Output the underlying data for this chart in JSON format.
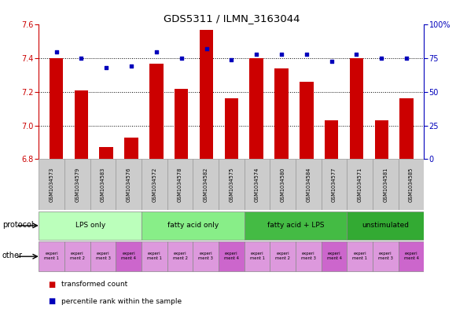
{
  "title": "GDS5311 / ILMN_3163044",
  "samples": [
    "GSM1034573",
    "GSM1034579",
    "GSM1034583",
    "GSM1034576",
    "GSM1034572",
    "GSM1034578",
    "GSM1034582",
    "GSM1034575",
    "GSM1034574",
    "GSM1034580",
    "GSM1034584",
    "GSM1034577",
    "GSM1034571",
    "GSM1034581",
    "GSM1034585"
  ],
  "transformed_count": [
    7.4,
    7.21,
    6.87,
    6.93,
    7.37,
    7.22,
    7.57,
    7.16,
    7.4,
    7.34,
    7.26,
    7.03,
    7.4,
    7.03,
    7.16
  ],
  "percentile_rank": [
    80,
    75,
    68,
    69,
    80,
    75,
    82,
    74,
    78,
    78,
    78,
    73,
    78,
    75,
    75
  ],
  "ylim_left": [
    6.8,
    7.6
  ],
  "ylim_right": [
    0,
    100
  ],
  "yticks_left": [
    6.8,
    7.0,
    7.2,
    7.4,
    7.6
  ],
  "yticks_right": [
    0,
    25,
    50,
    75,
    100
  ],
  "bar_color": "#CC0000",
  "dot_color": "#0000BB",
  "protocol_groups": [
    {
      "label": "LPS only",
      "start": 0,
      "end": 4,
      "color": "#BBFFBB"
    },
    {
      "label": "fatty acid only",
      "start": 4,
      "end": 8,
      "color": "#88EE88"
    },
    {
      "label": "fatty acid + LPS",
      "start": 8,
      "end": 12,
      "color": "#44BB44"
    },
    {
      "label": "unstimulated",
      "start": 12,
      "end": 15,
      "color": "#33AA33"
    }
  ],
  "other_cells": [
    {
      "label": "experi\nment 1",
      "col": 0,
      "color": "#DD99DD"
    },
    {
      "label": "experi\nment 2",
      "col": 1,
      "color": "#DD99DD"
    },
    {
      "label": "experi\nment 3",
      "col": 2,
      "color": "#DD99DD"
    },
    {
      "label": "experi\nment 4",
      "col": 3,
      "color": "#CC66CC"
    },
    {
      "label": "experi\nment 1",
      "col": 4,
      "color": "#DD99DD"
    },
    {
      "label": "experi\nment 2",
      "col": 5,
      "color": "#DD99DD"
    },
    {
      "label": "experi\nment 3",
      "col": 6,
      "color": "#DD99DD"
    },
    {
      "label": "experi\nment 4",
      "col": 7,
      "color": "#CC66CC"
    },
    {
      "label": "experi\nment 1",
      "col": 8,
      "color": "#DD99DD"
    },
    {
      "label": "experi\nment 2",
      "col": 9,
      "color": "#DD99DD"
    },
    {
      "label": "experi\nment 3",
      "col": 10,
      "color": "#DD99DD"
    },
    {
      "label": "experi\nment 4",
      "col": 11,
      "color": "#CC66CC"
    },
    {
      "label": "experi\nment 1",
      "col": 12,
      "color": "#DD99DD"
    },
    {
      "label": "experi\nment 3",
      "col": 13,
      "color": "#DD99DD"
    },
    {
      "label": "experi\nment 4",
      "col": 14,
      "color": "#CC66CC"
    }
  ],
  "legend_items": [
    {
      "label": "transformed count",
      "color": "#CC0000"
    },
    {
      "label": "percentile rank within the sample",
      "color": "#0000BB"
    }
  ]
}
